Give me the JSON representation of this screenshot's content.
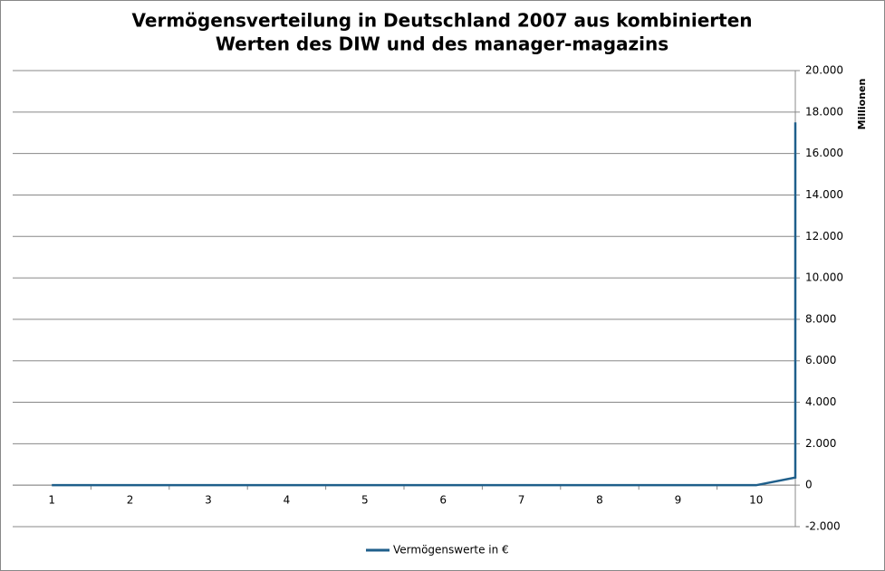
{
  "chart_data": {
    "type": "line",
    "title": [
      "Vermögensverteilung in Deutschland 2007 aus kombinierten",
      "Werten des DIW und des manager-magazins"
    ],
    "y_label": "Millionen",
    "x": [
      1,
      2,
      3,
      4,
      5,
      6,
      7,
      8,
      9,
      10,
      10.5,
      10.5
    ],
    "xlim": [
      0.5,
      10.5
    ],
    "xticks": [
      1,
      2,
      3,
      4,
      5,
      6,
      7,
      8,
      9,
      10
    ],
    "series": [
      {
        "name": "Vermögenswerte in €",
        "color": "#1f5f8b",
        "values": [
          0,
          0,
          0,
          0,
          0,
          0,
          0,
          0,
          0,
          0,
          370,
          17500
        ]
      }
    ],
    "ylim": [
      -2000,
      20000
    ],
    "yticks": [
      {
        "value": -2000,
        "label": "-2.000"
      },
      0,
      {
        "value": 2000,
        "label": "2.000"
      },
      {
        "value": 4000,
        "label": "4.000"
      },
      {
        "value": 6000,
        "label": "6.000"
      },
      {
        "value": 8000,
        "label": "8.000"
      },
      {
        "value": 10000,
        "label": "10.000"
      },
      {
        "value": 12000,
        "label": "12.000"
      },
      {
        "value": 14000,
        "label": "14.000"
      },
      {
        "value": 16000,
        "label": "16.000"
      },
      {
        "value": 18000,
        "label": "18.000"
      },
      {
        "value": 20000,
        "label": "20.000"
      }
    ],
    "grid": true,
    "legend": "bottom"
  }
}
